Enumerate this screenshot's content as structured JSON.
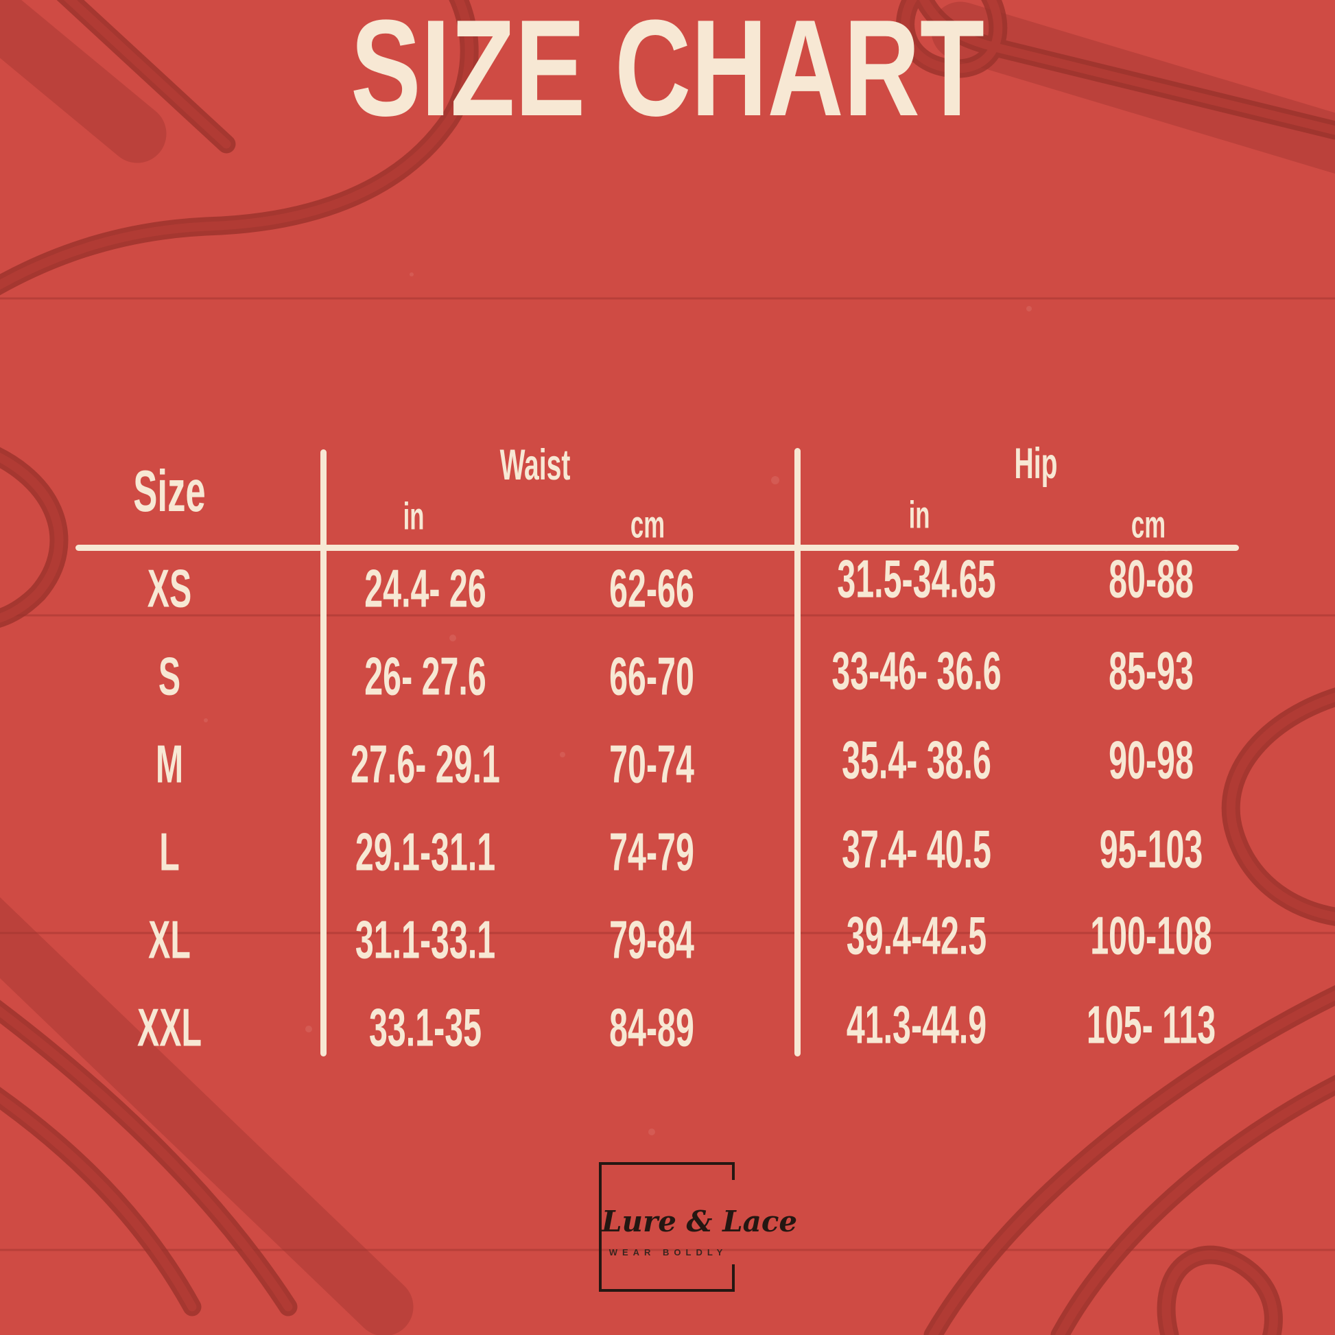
{
  "title": "SIZE CHART",
  "table": {
    "size_header": "Size",
    "groups": [
      {
        "label": "Waist",
        "subcols": [
          "in",
          "cm"
        ]
      },
      {
        "label": "Hip",
        "subcols": [
          "in",
          "cm"
        ]
      }
    ]
  },
  "chart_data": {
    "type": "table",
    "title": "SIZE CHART",
    "columns": [
      "Size",
      "Waist in",
      "Waist cm",
      "Hip in",
      "Hip cm"
    ],
    "rows": [
      [
        "XS",
        "24.4- 26",
        "62-66",
        "31.5-34.65",
        "80-88"
      ],
      [
        "S",
        "26- 27.6",
        "66-70",
        "33-46- 36.6",
        "85-93"
      ],
      [
        "M",
        "27.6- 29.1",
        "70-74",
        "35.4- 38.6",
        "90-98"
      ],
      [
        "L",
        "29.1-31.1",
        "74-79",
        "37.4- 40.5",
        "95-103"
      ],
      [
        "XL",
        "31.1-33.1",
        "79-84",
        "39.4-42.5",
        "100-108"
      ],
      [
        "XXL",
        "33.1-35",
        "84-89",
        "41.3-44.9",
        "105- 113"
      ]
    ]
  },
  "logo": {
    "brand": "Lure & Lace",
    "tagline": "WEAR BOLDLY"
  },
  "colors": {
    "bg": "#cf4b44",
    "cream": "#f7e8d4",
    "hanger": "#b23c35",
    "hanger-dark": "#9a322c",
    "seam": "#9c322c",
    "ink": "#241712"
  }
}
